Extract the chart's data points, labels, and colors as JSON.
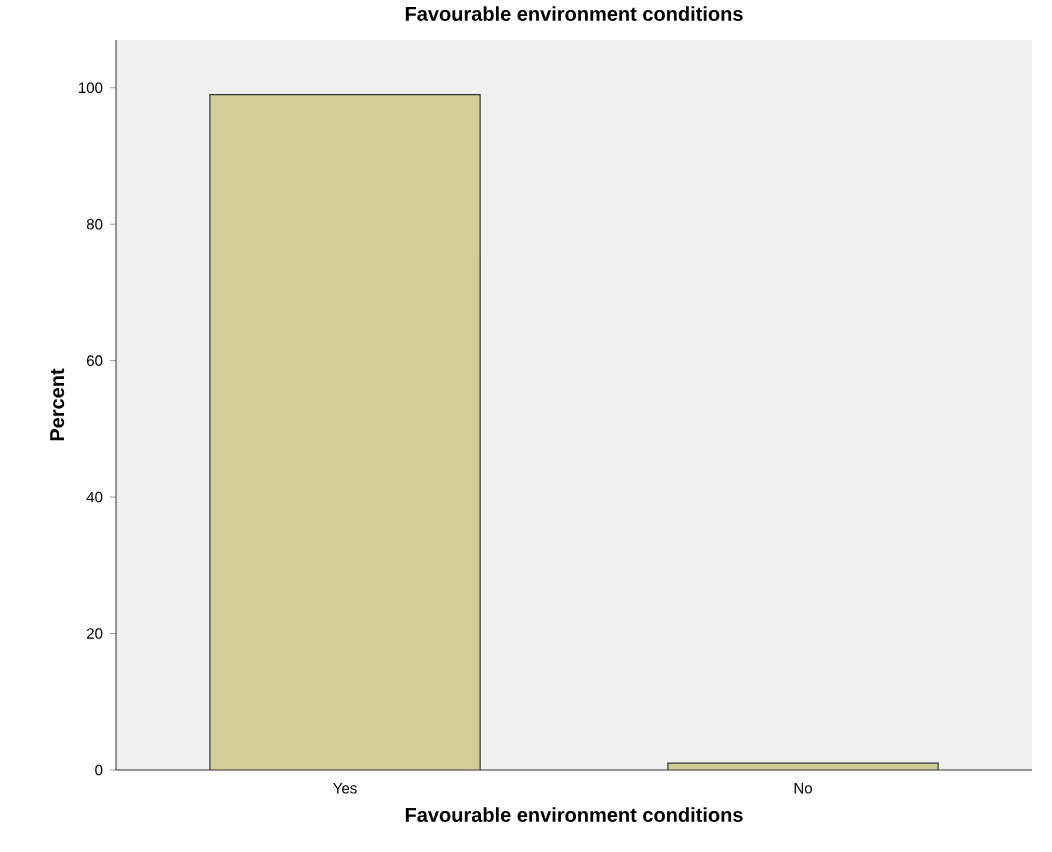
{
  "chart_data": {
    "type": "bar",
    "title": "Favourable environment conditions",
    "xlabel": "Favourable environment conditions",
    "ylabel": "Percent",
    "categories": [
      "Yes",
      "No"
    ],
    "values": [
      99,
      1
    ],
    "color": "#d3ce97",
    "ylim": [
      0,
      107
    ],
    "yticks": [
      0,
      20,
      40,
      60,
      80,
      100
    ]
  }
}
